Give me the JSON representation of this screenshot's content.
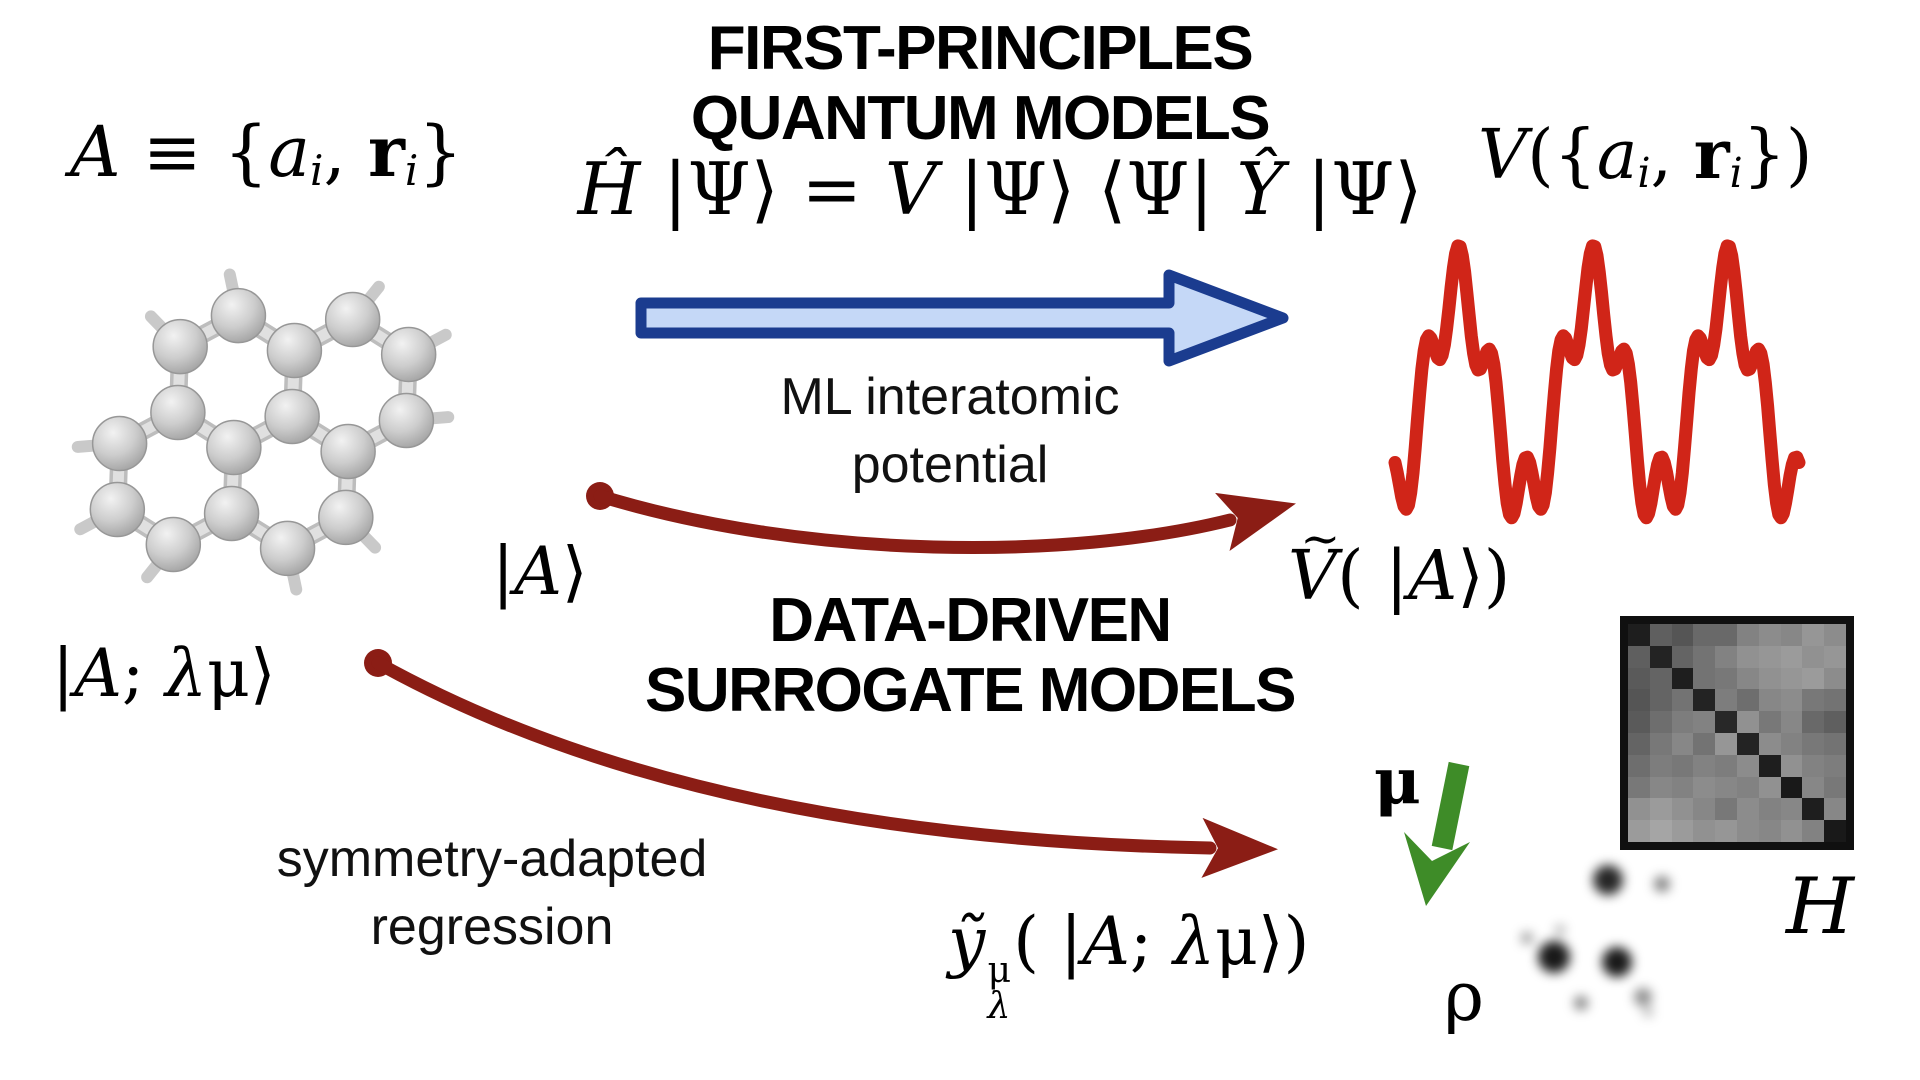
{
  "colors": {
    "background": "#ffffff",
    "text": "#000000",
    "blue_arrow_fill": "#c5d8f7",
    "blue_arrow_stroke": "#1b3c8f",
    "dark_red_arrow": "#8b1d15",
    "potential_red": "#d02518",
    "green_arrow": "#3e8c28",
    "atom_gray": "#cccccc",
    "matrix_border": "#101010"
  },
  "headings": {
    "first_principles": [
      "FIRST-PRINCIPLES",
      "QUANTUM MODELS"
    ],
    "data_driven": [
      "DATA-DRIVEN",
      "SURROGATE MODELS"
    ]
  },
  "annotations": {
    "ml_potential": [
      "ML interatomic",
      "potential"
    ],
    "symmetry_regression": [
      "symmetry-adapted",
      "regression"
    ]
  },
  "symbols": {
    "mu": "μ",
    "rho": "ρ",
    "hamiltonian": "H"
  },
  "equations": {
    "structure": [
      {
        "t": "A",
        "s": "it"
      },
      {
        "t": " ≡ {",
        "s": "up"
      },
      {
        "t": "a",
        "s": "it"
      },
      {
        "t": "i",
        "s": "sb"
      },
      {
        "t": ", ",
        "s": "up"
      },
      {
        "t": "r",
        "s": "bf"
      },
      {
        "t": "i",
        "s": "sb"
      },
      {
        "t": "}",
        "s": "up"
      }
    ],
    "schrodinger": [
      {
        "t": "Ĥ",
        "s": "it"
      },
      {
        "t": " |Ψ⟩ = ",
        "s": "up"
      },
      {
        "t": "V",
        "s": "it"
      },
      {
        "t": " |Ψ⟩ ⟨Ψ| ",
        "s": "up"
      },
      {
        "t": "Ŷ",
        "s": "it"
      },
      {
        "t": " |Ψ⟩",
        "s": "up"
      }
    ],
    "potential_fn": [
      {
        "t": "V",
        "s": "it"
      },
      {
        "t": "({",
        "s": "up"
      },
      {
        "t": "a",
        "s": "it"
      },
      {
        "t": "i",
        "s": "sb"
      },
      {
        "t": ", ",
        "s": "up"
      },
      {
        "t": "r",
        "s": "bf"
      },
      {
        "t": "i",
        "s": "sb"
      },
      {
        "t": "})",
        "s": "up"
      }
    ],
    "ket_a": [
      {
        "t": "|",
        "s": "up"
      },
      {
        "t": "A",
        "s": "it"
      },
      {
        "t": "⟩",
        "s": "up"
      }
    ],
    "v_tilde": [
      {
        "t": "V",
        "s": "it tld"
      },
      {
        "t": "( |",
        "s": "up"
      },
      {
        "t": "A",
        "s": "it"
      },
      {
        "t": "⟩)",
        "s": "up"
      }
    ],
    "ket_alm": [
      {
        "t": "|",
        "s": "up"
      },
      {
        "t": "A",
        "s": "it"
      },
      {
        "t": "; ",
        "s": "up"
      },
      {
        "t": "λ",
        "s": "it"
      },
      {
        "t": "μ⟩",
        "s": "up"
      }
    ],
    "y_tilde": [
      {
        "t": "ỹ",
        "s": "it"
      },
      {
        "sup": "μ",
        "sub": "λ"
      },
      {
        "t": "( |",
        "s": "up"
      },
      {
        "t": "A",
        "s": "it"
      },
      {
        "t": "; ",
        "s": "up"
      },
      {
        "t": "λ",
        "s": "it"
      },
      {
        "t": "μ⟩)",
        "s": "up"
      }
    ]
  },
  "h_matrix": {
    "rows": 10,
    "cols": 10,
    "cells": [
      [
        30,
        95,
        85,
        105,
        105,
        130,
        140,
        135,
        150,
        140
      ],
      [
        95,
        35,
        100,
        115,
        130,
        145,
        150,
        155,
        145,
        150
      ],
      [
        90,
        100,
        30,
        115,
        120,
        135,
        145,
        150,
        155,
        140
      ],
      [
        85,
        100,
        115,
        35,
        125,
        110,
        135,
        140,
        120,
        115
      ],
      [
        90,
        110,
        125,
        130,
        40,
        145,
        120,
        135,
        105,
        95
      ],
      [
        100,
        120,
        135,
        115,
        150,
        35,
        140,
        130,
        120,
        115
      ],
      [
        110,
        125,
        120,
        130,
        125,
        140,
        30,
        145,
        130,
        125
      ],
      [
        120,
        135,
        130,
        140,
        135,
        130,
        145,
        25,
        135,
        120
      ],
      [
        145,
        155,
        145,
        135,
        120,
        140,
        130,
        135,
        30,
        135
      ],
      [
        155,
        165,
        155,
        145,
        150,
        140,
        135,
        145,
        130,
        25
      ]
    ]
  }
}
